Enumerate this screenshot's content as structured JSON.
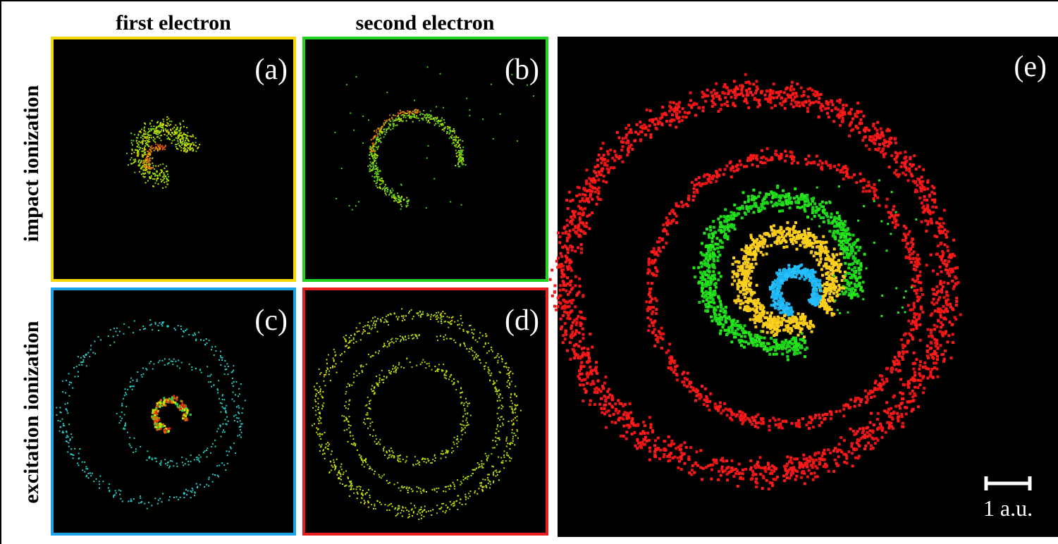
{
  "columns": [
    "first electron",
    "second electron"
  ],
  "rows": [
    "impact ionization",
    "excitation ionization"
  ],
  "panels": [
    "(a)",
    "(b)",
    "(c)",
    "(d)",
    "(e)"
  ],
  "scale_bar": "1 a.u."
}
